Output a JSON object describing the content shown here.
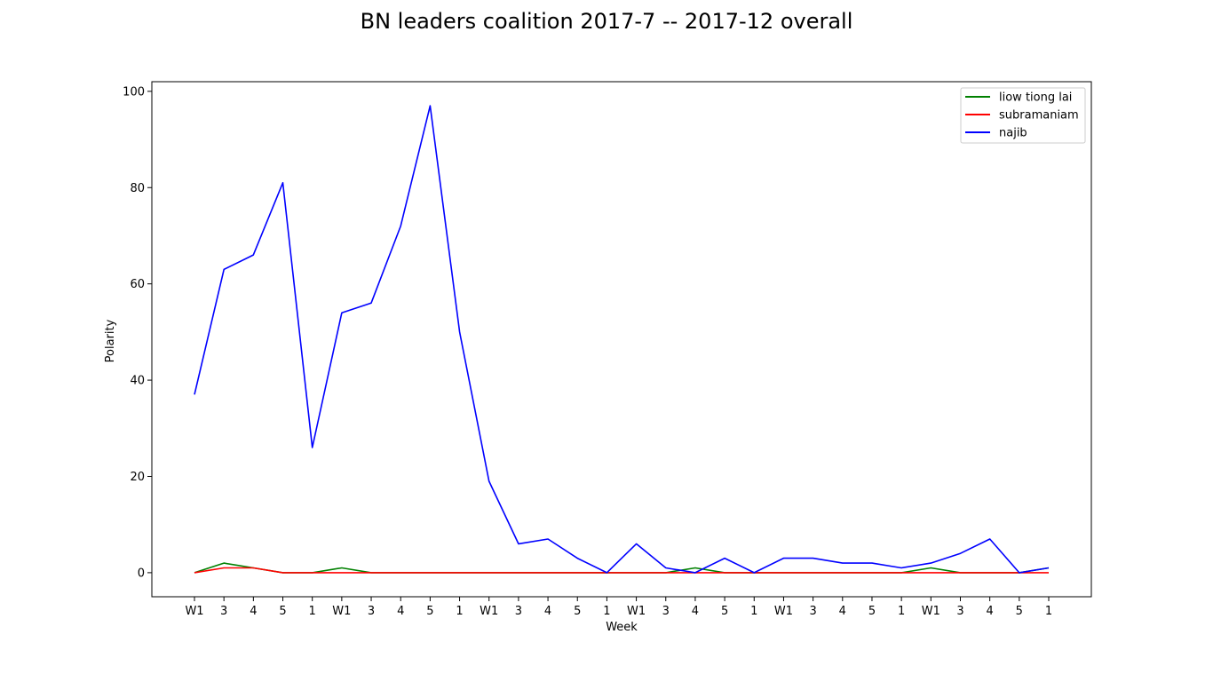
{
  "chart_data": {
    "type": "line",
    "title": "BN leaders coalition 2017-7 -- 2017-12 overall",
    "xlabel": "Week",
    "ylabel": "Polarity",
    "categories": [
      "W1",
      "3",
      "4",
      "5",
      "1",
      "W1",
      "3",
      "4",
      "5",
      "1",
      "W1",
      "3",
      "4",
      "5",
      "1",
      "W1",
      "3",
      "4",
      "5",
      "1",
      "W1",
      "3",
      "4",
      "5",
      "1",
      "W1",
      "3",
      "4",
      "5",
      "1"
    ],
    "yticks": [
      0,
      20,
      40,
      60,
      80,
      100
    ],
    "ylim": [
      -5,
      102
    ],
    "grid": false,
    "legend_position": "top-right",
    "series": [
      {
        "name": "liow tiong lai",
        "color": "#008000",
        "values": [
          0,
          2,
          1,
          0,
          0,
          1,
          0,
          0,
          0,
          0,
          0,
          0,
          0,
          0,
          0,
          0,
          0,
          1,
          0,
          0,
          0,
          0,
          0,
          0,
          0,
          1,
          0,
          0,
          0,
          1
        ]
      },
      {
        "name": "subramaniam",
        "color": "#ff0000",
        "values": [
          0,
          1,
          1,
          0,
          0,
          0,
          0,
          0,
          0,
          0,
          0,
          0,
          0,
          0,
          0,
          0,
          0,
          0,
          0,
          0,
          0,
          0,
          0,
          0,
          0,
          0,
          0,
          0,
          0,
          0
        ]
      },
      {
        "name": "najib",
        "color": "#0000ff",
        "values": [
          37,
          63,
          66,
          81,
          26,
          54,
          56,
          72,
          97,
          50,
          19,
          6,
          7,
          3,
          0,
          6,
          1,
          0,
          3,
          0,
          3,
          3,
          2,
          2,
          1,
          2,
          4,
          7,
          0,
          1
        ]
      }
    ]
  }
}
